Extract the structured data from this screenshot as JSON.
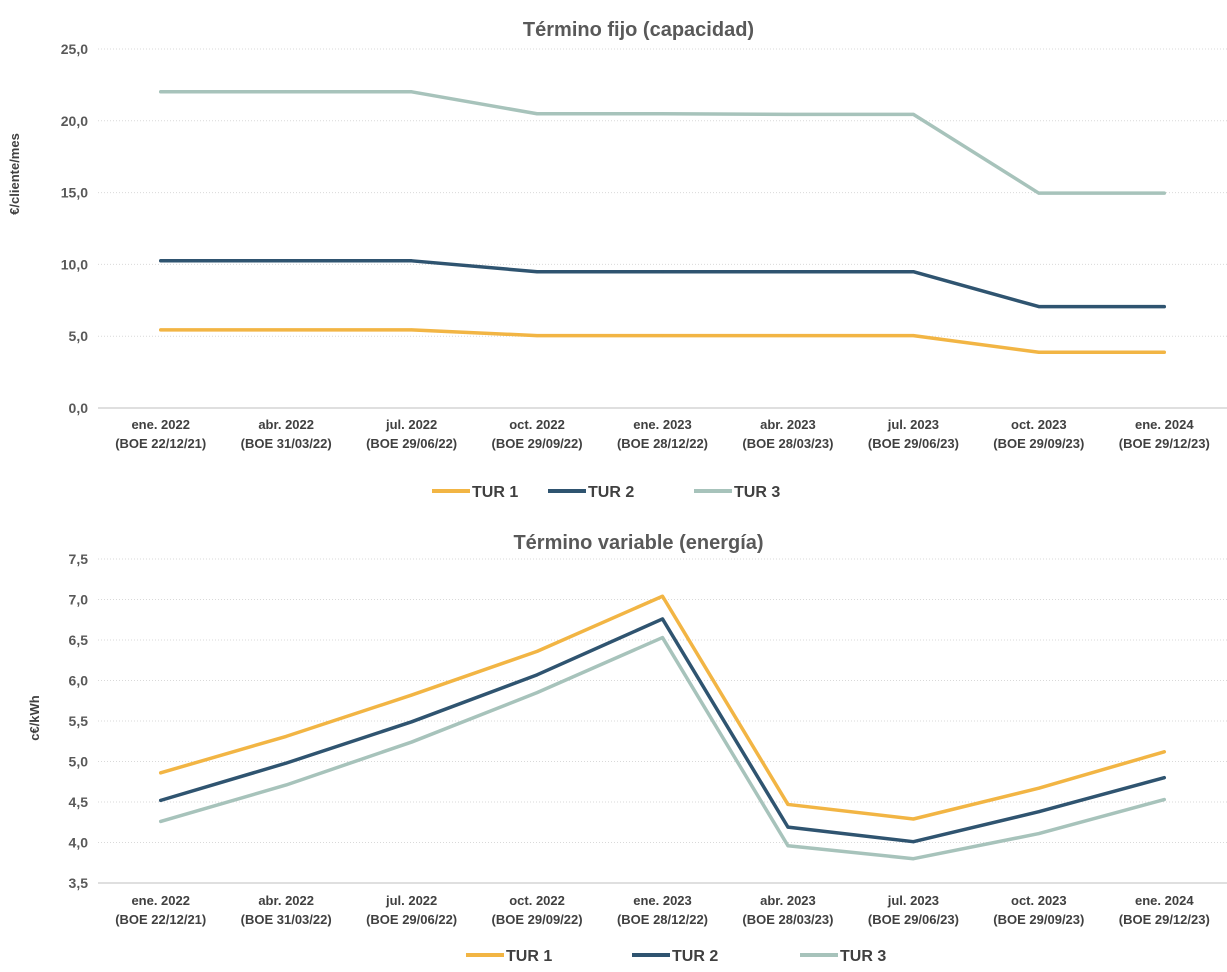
{
  "chart_data": [
    {
      "type": "line",
      "title": "Término fijo (capacidad)",
      "ylabel": "€/cliente/mes",
      "xlabel": "",
      "ylim": [
        0,
        25
      ],
      "yticks": [
        "0,0",
        "5,0",
        "10,0",
        "15,0",
        "20,0",
        "25,0"
      ],
      "grid": true,
      "legend_position": "bottom",
      "categories": [
        [
          "ene. 2022",
          "(BOE 22/12/21)"
        ],
        [
          "abr. 2022",
          "(BOE 31/03/22)"
        ],
        [
          "jul. 2022",
          "(BOE 29/06/22)"
        ],
        [
          "oct. 2022",
          "(BOE 29/09/22)"
        ],
        [
          "ene. 2023",
          "(BOE 28/12/22)"
        ],
        [
          "abr. 2023",
          "(BOE 28/03/23)"
        ],
        [
          "jul. 2023",
          "(BOE 29/06/23)"
        ],
        [
          "oct. 2023",
          "(BOE 29/09/23)"
        ],
        [
          "ene. 2024",
          "(BOE 29/12/23)"
        ]
      ],
      "series": [
        {
          "name": "TUR 1",
          "color": "#f2b544",
          "values": [
            5.44,
            5.44,
            5.44,
            5.04,
            5.04,
            5.04,
            5.04,
            3.88,
            3.88
          ]
        },
        {
          "name": "TUR 2",
          "color": "#2f5470",
          "values": [
            10.25,
            10.25,
            10.25,
            9.49,
            9.49,
            9.49,
            9.49,
            7.06,
            7.06
          ]
        },
        {
          "name": "TUR 3",
          "color": "#a7c3bb",
          "values": [
            22.02,
            22.02,
            22.02,
            20.49,
            20.49,
            20.45,
            20.45,
            14.96,
            14.96
          ]
        }
      ]
    },
    {
      "type": "line",
      "title": "Término variable (energía)",
      "ylabel": "c€/kWh",
      "xlabel": "",
      "ylim": [
        3.5,
        7.5
      ],
      "yticks": [
        "3,5",
        "4,0",
        "4,5",
        "5,0",
        "5,5",
        "6,0",
        "6,5",
        "7,0",
        "7,5"
      ],
      "grid": true,
      "legend_position": "bottom",
      "categories": [
        [
          "ene. 2022",
          "(BOE 22/12/21)"
        ],
        [
          "abr. 2022",
          "(BOE 31/03/22)"
        ],
        [
          "jul. 2022",
          "(BOE 29/06/22)"
        ],
        [
          "oct. 2022",
          "(BOE 29/09/22)"
        ],
        [
          "ene. 2023",
          "(BOE 28/12/22)"
        ],
        [
          "abr. 2023",
          "(BOE 28/03/23)"
        ],
        [
          "jul. 2023",
          "(BOE 29/06/23)"
        ],
        [
          "oct. 2023",
          "(BOE 29/09/23)"
        ],
        [
          "ene. 2024",
          "(BOE 29/12/23)"
        ]
      ],
      "series": [
        {
          "name": "TUR 1",
          "color": "#f2b544",
          "values": [
            4.86,
            5.31,
            5.82,
            6.36,
            7.04,
            4.47,
            4.29,
            4.67,
            5.12
          ]
        },
        {
          "name": "TUR 2",
          "color": "#2f5470",
          "values": [
            4.52,
            4.98,
            5.49,
            6.07,
            6.76,
            4.19,
            4.01,
            4.38,
            4.8
          ]
        },
        {
          "name": "TUR 3",
          "color": "#a7c3bb",
          "values": [
            4.26,
            4.71,
            5.24,
            5.85,
            6.53,
            3.96,
            3.8,
            4.11,
            4.53
          ]
        }
      ]
    }
  ]
}
